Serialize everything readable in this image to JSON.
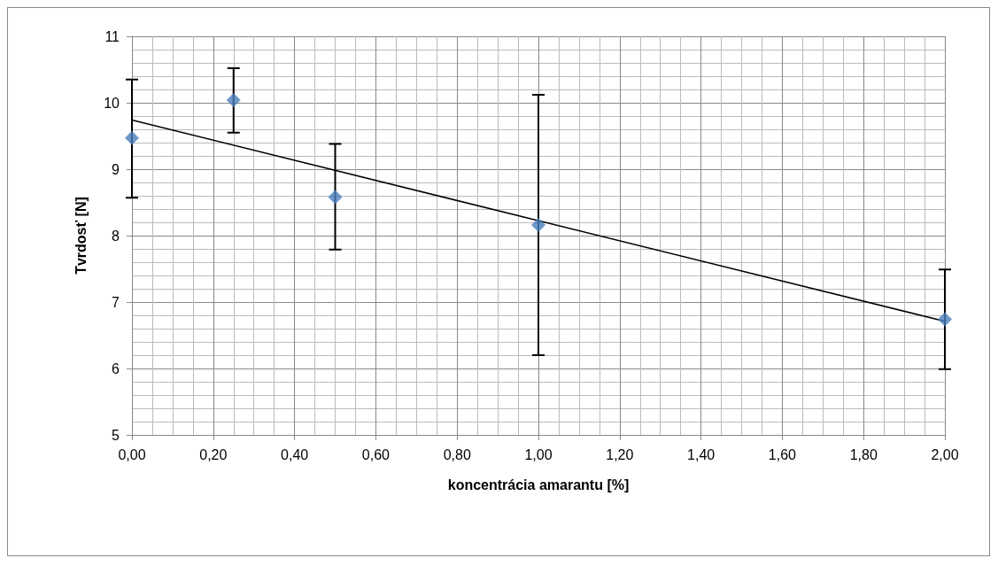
{
  "chart_data": {
    "type": "scatter",
    "xlabel": "koncentrácia amarantu [%]",
    "ylabel": "Tvrdosť [N]",
    "x": [
      0,
      0.25,
      0.5,
      1,
      2
    ],
    "series": [
      {
        "color": "#4a7ebb",
        "marker": "diamond",
        "values": [
          9.47,
          10.04,
          8.58,
          8.16,
          6.74
        ],
        "errors": [
          [
            8.57,
            10.35
          ],
          [
            9.55,
            10.52
          ],
          [
            7.79,
            9.38
          ],
          [
            6.2,
            10.12
          ],
          [
            5.99,
            7.49
          ]
        ]
      },
      {
        "type": "line",
        "color": "#000000",
        "x": [
          0,
          2
        ],
        "values": [
          9.74,
          6.71
        ],
        "marker": "none"
      }
    ],
    "xlim": [
      0,
      2
    ],
    "xticks": [
      {
        "value": 0,
        "label": "0,00"
      },
      {
        "value": 0.2,
        "label": "0,20"
      },
      {
        "value": 0.4,
        "label": "0,40"
      },
      {
        "value": 0.6,
        "label": "0,60"
      },
      {
        "value": 0.8,
        "label": "0,80"
      },
      {
        "value": 1,
        "label": "1,00"
      },
      {
        "value": 1.2,
        "label": "1,20"
      },
      {
        "value": 1.4,
        "label": "1,40"
      },
      {
        "value": 1.6,
        "label": "1,60"
      },
      {
        "value": 1.8,
        "label": "1,80"
      },
      {
        "value": 2,
        "label": "2,00"
      }
    ],
    "ylim": [
      5,
      11
    ],
    "yticks": [
      5,
      6,
      7,
      8,
      9,
      10,
      11
    ],
    "grid": true
  }
}
